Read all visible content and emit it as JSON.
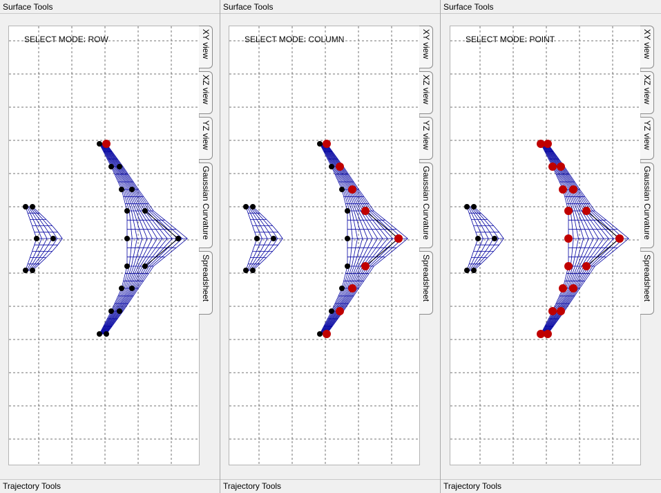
{
  "panels": [
    {
      "surface_tools": "Surface Tools",
      "trajectory_tools": "Trajectory Tools",
      "mode_label": "SELECT MODE: ROW",
      "selection": "row"
    },
    {
      "surface_tools": "Surface Tools",
      "trajectory_tools": "Trajectory Tools",
      "mode_label": "SELECT MODE: COLUMN",
      "selection": "column"
    },
    {
      "surface_tools": "Surface Tools",
      "trajectory_tools": "Trajectory Tools",
      "mode_label": "SELECT MODE: POINT",
      "selection": "point"
    }
  ],
  "tabs": [
    "XY view",
    "XZ view",
    "YZ view",
    "Gaussian Curvature",
    "Spreadsheet"
  ],
  "colors": {
    "mesh": "#0000a0",
    "selected": "#c00000",
    "point": "#000000",
    "grid": "#707070"
  }
}
